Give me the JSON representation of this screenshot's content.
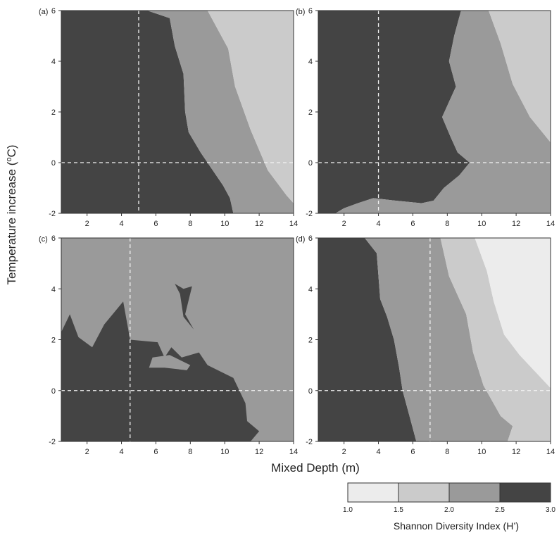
{
  "figure": {
    "ylabel_main": "Temperature increase (",
    "ylabel_degree": "o",
    "ylabel_unit": "C)",
    "xlabel": "Mixed Depth (m)",
    "colorbar_label": "Shannon Diversity Index (H’)"
  },
  "chart_data": [
    {
      "type": "contour",
      "panel": "(a)",
      "xlim": [
        0.5,
        14
      ],
      "ylim": [
        -2,
        6
      ],
      "xticks": [
        2,
        4,
        6,
        8,
        10,
        12,
        14
      ],
      "yticks": [
        -2,
        0,
        2,
        4,
        6
      ],
      "reference_lines": {
        "x": 5.0,
        "y": 0
      },
      "regions": [
        {
          "level": "2.5-3.0",
          "polygon": [
            [
              0.5,
              6
            ],
            [
              5.5,
              6
            ],
            [
              6.8,
              5.7
            ],
            [
              7.1,
              4.6
            ],
            [
              7.6,
              3.5
            ],
            [
              7.7,
              2.0
            ],
            [
              7.9,
              1.2
            ],
            [
              8.6,
              0.4
            ],
            [
              9.2,
              -0.2
            ],
            [
              9.9,
              -0.9
            ],
            [
              10.3,
              -1.4
            ],
            [
              10.5,
              -2
            ],
            [
              0.5,
              -2
            ]
          ]
        },
        {
          "level": "2.0-2.5",
          "polygon": [
            [
              5.5,
              6
            ],
            [
              9.0,
              6
            ],
            [
              10.2,
              4.5
            ],
            [
              10.6,
              3.0
            ],
            [
              11.5,
              1.3
            ],
            [
              12.5,
              -0.3
            ],
            [
              13.6,
              -1.3
            ],
            [
              14,
              -1.6
            ],
            [
              14,
              -2
            ],
            [
              10.5,
              -2
            ],
            [
              10.3,
              -1.4
            ],
            [
              9.9,
              -0.9
            ],
            [
              9.2,
              -0.2
            ],
            [
              8.6,
              0.4
            ],
            [
              7.9,
              1.2
            ],
            [
              7.7,
              2.0
            ],
            [
              7.6,
              3.5
            ],
            [
              7.1,
              4.6
            ],
            [
              6.8,
              5.7
            ]
          ]
        },
        {
          "level": "1.5-2.0",
          "polygon": [
            [
              9.0,
              6
            ],
            [
              14,
              6
            ],
            [
              14,
              -1.6
            ],
            [
              13.6,
              -1.3
            ],
            [
              12.5,
              -0.3
            ],
            [
              11.5,
              1.3
            ],
            [
              10.6,
              3.0
            ],
            [
              10.2,
              4.5
            ]
          ]
        }
      ]
    },
    {
      "type": "contour",
      "panel": "(b)",
      "xlim": [
        0.5,
        14
      ],
      "ylim": [
        -2,
        6
      ],
      "xticks": [
        2,
        4,
        6,
        8,
        10,
        12,
        14
      ],
      "yticks": [
        -2,
        0,
        2,
        4,
        6
      ],
      "reference_lines": {
        "x": 4.0,
        "y": 0
      },
      "regions": [
        {
          "level": "2.5-3.0",
          "polygon": [
            [
              0.5,
              6
            ],
            [
              8.8,
              6
            ],
            [
              8.4,
              5.0
            ],
            [
              8.1,
              4.0
            ],
            [
              8.5,
              3.0
            ],
            [
              7.7,
              1.8
            ],
            [
              8.2,
              1.0
            ],
            [
              8.6,
              0.4
            ],
            [
              9.3,
              0
            ],
            [
              8.7,
              -0.5
            ],
            [
              7.8,
              -1.0
            ],
            [
              7.2,
              -1.5
            ],
            [
              6.5,
              -1.6
            ],
            [
              5.0,
              -1.5
            ],
            [
              3.7,
              -1.4
            ],
            [
              2.8,
              -1.6
            ],
            [
              2.0,
              -1.8
            ],
            [
              1.5,
              -2
            ],
            [
              0.5,
              -2
            ]
          ]
        },
        {
          "level": "2.0-2.5",
          "polygon": [
            [
              8.8,
              6
            ],
            [
              10.4,
              6
            ],
            [
              11.1,
              4.7
            ],
            [
              11.8,
              3.1
            ],
            [
              12.8,
              1.8
            ],
            [
              14,
              0.8
            ],
            [
              14,
              -2
            ],
            [
              1.5,
              -2
            ],
            [
              2.0,
              -1.8
            ],
            [
              2.8,
              -1.6
            ],
            [
              3.7,
              -1.4
            ],
            [
              5.0,
              -1.5
            ],
            [
              6.5,
              -1.6
            ],
            [
              7.2,
              -1.5
            ],
            [
              7.8,
              -1.0
            ],
            [
              8.7,
              -0.5
            ],
            [
              9.3,
              0
            ],
            [
              8.6,
              0.4
            ],
            [
              8.2,
              1.0
            ],
            [
              7.7,
              1.8
            ],
            [
              8.5,
              3.0
            ],
            [
              8.1,
              4.0
            ],
            [
              8.4,
              5.0
            ]
          ]
        },
        {
          "level": "1.5-2.0",
          "polygon": [
            [
              10.4,
              6
            ],
            [
              14,
              6
            ],
            [
              14,
              0.8
            ],
            [
              12.8,
              1.8
            ],
            [
              11.8,
              3.1
            ],
            [
              11.1,
              4.7
            ]
          ]
        }
      ]
    },
    {
      "type": "contour",
      "panel": "(c)",
      "xlim": [
        0.5,
        14
      ],
      "ylim": [
        -2,
        6
      ],
      "xticks": [
        2,
        4,
        6,
        8,
        10,
        12,
        14
      ],
      "yticks": [
        -2,
        0,
        2,
        4,
        6
      ],
      "reference_lines": {
        "x": 4.5,
        "y": 0
      },
      "regions": [
        {
          "level": "2.0-2.5",
          "polygon": [
            [
              0.5,
              6
            ],
            [
              14,
              6
            ],
            [
              14,
              -2
            ],
            [
              0.5,
              -2
            ]
          ]
        },
        {
          "level": "2.5-3.0",
          "polygon": [
            [
              0.5,
              2.3
            ],
            [
              1.0,
              3.0
            ],
            [
              1.5,
              2.1
            ],
            [
              2.3,
              1.7
            ],
            [
              3.0,
              2.6
            ],
            [
              4.1,
              3.5
            ],
            [
              4.5,
              2.0
            ],
            [
              6.1,
              1.9
            ],
            [
              6.5,
              1.3
            ],
            [
              6.9,
              1.7
            ],
            [
              7.5,
              1.3
            ],
            [
              8.5,
              1.5
            ],
            [
              9.0,
              1.0
            ],
            [
              10.5,
              0.5
            ],
            [
              11.2,
              -0.5
            ],
            [
              11.3,
              -1.2
            ],
            [
              12.0,
              -1.6
            ],
            [
              11.5,
              -2
            ],
            [
              0.5,
              -2
            ]
          ]
        },
        {
          "level": "2.0-2.5",
          "polygon": [
            [
              5.8,
              1.3
            ],
            [
              6.8,
              1.4
            ],
            [
              8.0,
              1.0
            ],
            [
              7.8,
              0.8
            ],
            [
              6.5,
              0.9
            ],
            [
              5.6,
              0.9
            ]
          ]
        },
        {
          "level": "2.5-3.0",
          "polygon": [
            [
              7.6,
              4.0
            ],
            [
              8.1,
              4.1
            ],
            [
              7.7,
              3.0
            ],
            [
              8.2,
              2.4
            ],
            [
              7.6,
              2.9
            ],
            [
              7.4,
              3.8
            ],
            [
              7.1,
              4.2
            ]
          ]
        }
      ]
    },
    {
      "type": "contour",
      "panel": "(d)",
      "xlim": [
        0.5,
        14
      ],
      "ylim": [
        -2,
        6
      ],
      "xticks": [
        2,
        4,
        6,
        8,
        10,
        12,
        14
      ],
      "yticks": [
        -2,
        0,
        2,
        4,
        6
      ],
      "reference_lines": {
        "x": 7.0,
        "y": 0
      },
      "regions": [
        {
          "level": "2.5-3.0",
          "polygon": [
            [
              0.5,
              6
            ],
            [
              3.2,
              6
            ],
            [
              3.9,
              5.4
            ],
            [
              4.1,
              3.6
            ],
            [
              4.5,
              2.9
            ],
            [
              4.9,
              2.0
            ],
            [
              5.2,
              0.9
            ],
            [
              5.4,
              0
            ],
            [
              5.8,
              -1.0
            ],
            [
              6.2,
              -2
            ],
            [
              0.5,
              -2
            ]
          ]
        },
        {
          "level": "2.0-2.5",
          "polygon": [
            [
              3.2,
              6
            ],
            [
              7.6,
              6
            ],
            [
              8.1,
              4.5
            ],
            [
              9.1,
              3.0
            ],
            [
              9.5,
              1.5
            ],
            [
              10.1,
              0.2
            ],
            [
              11.1,
              -1.0
            ],
            [
              11.8,
              -1.4
            ],
            [
              11.5,
              -2
            ],
            [
              6.2,
              -2
            ],
            [
              5.8,
              -1.0
            ],
            [
              5.4,
              0
            ],
            [
              5.2,
              0.9
            ],
            [
              4.9,
              2.0
            ],
            [
              4.5,
              2.9
            ],
            [
              4.1,
              3.6
            ],
            [
              3.9,
              5.4
            ]
          ]
        },
        {
          "level": "1.5-2.0",
          "polygon": [
            [
              7.6,
              6
            ],
            [
              9.6,
              6
            ],
            [
              10.3,
              4.7
            ],
            [
              10.7,
              3.5
            ],
            [
              11.3,
              2.2
            ],
            [
              12.2,
              1.4
            ],
            [
              14,
              0.1
            ],
            [
              14,
              -2
            ],
            [
              11.5,
              -2
            ],
            [
              11.8,
              -1.4
            ],
            [
              11.1,
              -1.0
            ],
            [
              10.1,
              0.2
            ],
            [
              9.5,
              1.5
            ],
            [
              9.1,
              3.0
            ],
            [
              8.1,
              4.5
            ]
          ]
        },
        {
          "level": "1.0-1.5",
          "polygon": [
            [
              9.6,
              6
            ],
            [
              14,
              6
            ],
            [
              14,
              0.1
            ],
            [
              12.2,
              1.4
            ],
            [
              11.3,
              2.2
            ],
            [
              10.7,
              3.5
            ],
            [
              10.3,
              4.7
            ]
          ]
        }
      ]
    }
  ],
  "colorbar": {
    "ticks": [
      "1.0",
      "1.5",
      "2.0",
      "2.5",
      "3.0"
    ],
    "levels": [
      {
        "range": "1.0-1.5",
        "color": "#ececec"
      },
      {
        "range": "1.5-2.0",
        "color": "#cbcbcb"
      },
      {
        "range": "2.0-2.5",
        "color": "#9a9a9a"
      },
      {
        "range": "2.5-3.0",
        "color": "#444444"
      }
    ]
  }
}
